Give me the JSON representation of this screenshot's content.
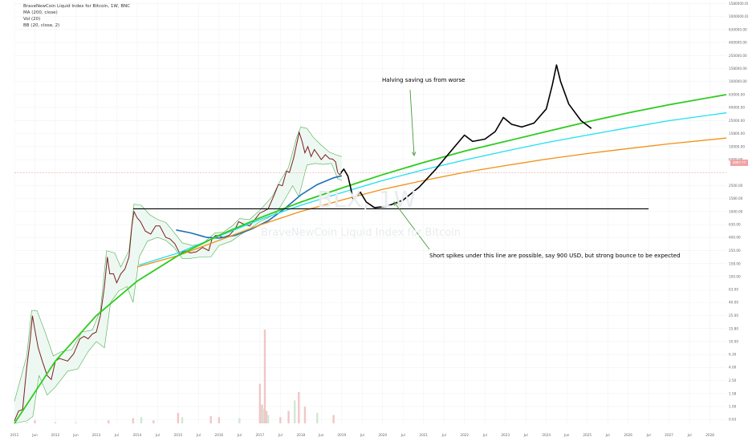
{
  "legend": {
    "title": "BraveNewCoin Liquid Index for Bitcoin, 1W, BNC",
    "ma": "MA (200, close)",
    "vol": "Vol (20)",
    "bb": "BB (20, close, 2)"
  },
  "watermark": {
    "symbol": "BLX, 1W",
    "name": "BraveNewCoin Liquid Index for Bitcoin"
  },
  "annotations": {
    "halving": "Halving saving us from worse",
    "spikes": "Short spikes under this line are possible, say 900 USD, but strong bounce to be expected"
  },
  "price_badge": "3957.77",
  "colors": {
    "candle": "#7a2020",
    "bollinger_band": "#4caf50",
    "bollinger_fill": "#eef8f2",
    "ma200": "#1e6fb5",
    "curve_green": "#2ecc1e",
    "curve_cyan": "#1ee0f0",
    "curve_orange": "#f09010",
    "projection": "#000000",
    "arrow": "#4a9a3a",
    "support_line": "#000000",
    "volume_up": "#cfe8d6",
    "volume_down": "#f3c6c6",
    "price_line": "#f2a3a3"
  },
  "chart_data": {
    "type": "line",
    "title": "BraveNewCoin Liquid Index for Bitcoin, 1W, BNC",
    "yscale": "log",
    "x_range": [
      2011.0,
      2028.4
    ],
    "y_range": [
      0.55,
      1700000
    ],
    "y_ticks": [
      {
        "value": 0.63,
        "label": "0.63"
      },
      {
        "value": 1,
        "label": "1.00"
      },
      {
        "value": 1.58,
        "label": "1.58"
      },
      {
        "value": 2.5,
        "label": "2.50"
      },
      {
        "value": 4,
        "label": "4.00"
      },
      {
        "value": 6.3,
        "label": "6.30"
      },
      {
        "value": 10,
        "label": "10.00"
      },
      {
        "value": 15.8,
        "label": "15.80"
      },
      {
        "value": 25,
        "label": "25.00"
      },
      {
        "value": 40,
        "label": "40.00"
      },
      {
        "value": 63,
        "label": "63.00"
      },
      {
        "value": 100,
        "label": "100.00"
      },
      {
        "value": 158,
        "label": "158.00"
      },
      {
        "value": 250,
        "label": "250.00"
      },
      {
        "value": 400,
        "label": "400.00"
      },
      {
        "value": 630,
        "label": "630.00"
      },
      {
        "value": 1000,
        "label": "1000.00"
      },
      {
        "value": 1580,
        "label": "1580.00"
      },
      {
        "value": 2500,
        "label": "2500.00"
      },
      {
        "value": 6300,
        "label": "6300.00"
      },
      {
        "value": 10000,
        "label": "10000.00"
      },
      {
        "value": 15800,
        "label": "15800.00"
      },
      {
        "value": 25000,
        "label": "25000.00"
      },
      {
        "value": 40000,
        "label": "40000.00"
      },
      {
        "value": 63000,
        "label": "63000.00"
      },
      {
        "value": 100000,
        "label": "100000.00"
      },
      {
        "value": 158000,
        "label": "158000.00"
      },
      {
        "value": 250000,
        "label": "250000.00"
      },
      {
        "value": 400000,
        "label": "400000.00"
      },
      {
        "value": 630000,
        "label": "630000.00"
      },
      {
        "value": 1000000,
        "label": "1000000.00"
      },
      {
        "value": 1580000,
        "label": "1580000.00"
      }
    ],
    "x_ticks": [
      {
        "t": 2011.0,
        "label": "2011"
      },
      {
        "t": 2011.5,
        "label": "Jun"
      },
      {
        "t": 2012.0,
        "label": "2012"
      },
      {
        "t": 2012.5,
        "label": "Jun"
      },
      {
        "t": 2013.0,
        "label": "2013"
      },
      {
        "t": 2013.5,
        "label": "Jul"
      },
      {
        "t": 2014.0,
        "label": "2014"
      },
      {
        "t": 2014.5,
        "label": "Jul"
      },
      {
        "t": 2015.0,
        "label": "2015"
      },
      {
        "t": 2015.5,
        "label": "Jul"
      },
      {
        "t": 2016.0,
        "label": "2016"
      },
      {
        "t": 2016.5,
        "label": "Jul"
      },
      {
        "t": 2017.0,
        "label": "2017"
      },
      {
        "t": 2017.5,
        "label": "Jul"
      },
      {
        "t": 2018.0,
        "label": "2018"
      },
      {
        "t": 2018.5,
        "label": "Jun"
      },
      {
        "t": 2019.0,
        "label": "2019"
      },
      {
        "t": 2019.5,
        "label": "Jul"
      },
      {
        "t": 2020.0,
        "label": "2020"
      },
      {
        "t": 2020.5,
        "label": "Jul"
      },
      {
        "t": 2021.0,
        "label": "2021"
      },
      {
        "t": 2021.5,
        "label": "Jul"
      },
      {
        "t": 2022.0,
        "label": "2022"
      },
      {
        "t": 2022.5,
        "label": "Jul"
      },
      {
        "t": 2023.0,
        "label": "2023"
      },
      {
        "t": 2023.5,
        "label": "Jul"
      },
      {
        "t": 2024.0,
        "label": "2024"
      },
      {
        "t": 2024.5,
        "label": "Jun"
      },
      {
        "t": 2025.0,
        "label": "2025"
      },
      {
        "t": 2025.5,
        "label": "Jul"
      },
      {
        "t": 2026.0,
        "label": "2026"
      },
      {
        "t": 2026.5,
        "label": "Jul"
      },
      {
        "t": 2027.0,
        "label": "2027"
      },
      {
        "t": 2027.5,
        "label": "Jul"
      },
      {
        "t": 2028.0,
        "label": "2028"
      }
    ],
    "price": [
      [
        2011.0,
        0.6
      ],
      [
        2011.1,
        0.85
      ],
      [
        2011.2,
        0.9
      ],
      [
        2011.3,
        4
      ],
      [
        2011.38,
        10
      ],
      [
        2011.44,
        25
      ],
      [
        2011.5,
        15
      ],
      [
        2011.58,
        8
      ],
      [
        2011.68,
        5
      ],
      [
        2011.8,
        3
      ],
      [
        2011.9,
        2.6
      ],
      [
        2012.0,
        5
      ],
      [
        2012.1,
        5.5
      ],
      [
        2012.3,
        5
      ],
      [
        2012.45,
        6.5
      ],
      [
        2012.6,
        11
      ],
      [
        2012.7,
        12
      ],
      [
        2012.8,
        11
      ],
      [
        2012.9,
        13
      ],
      [
        2013.0,
        14
      ],
      [
        2013.1,
        25
      ],
      [
        2013.2,
        70
      ],
      [
        2013.27,
        200
      ],
      [
        2013.33,
        110
      ],
      [
        2013.42,
        110
      ],
      [
        2013.5,
        80
      ],
      [
        2013.6,
        110
      ],
      [
        2013.7,
        130
      ],
      [
        2013.8,
        200
      ],
      [
        2013.87,
        600
      ],
      [
        2013.92,
        1000
      ],
      [
        2014.0,
        800
      ],
      [
        2014.08,
        700
      ],
      [
        2014.2,
        500
      ],
      [
        2014.33,
        450
      ],
      [
        2014.45,
        600
      ],
      [
        2014.55,
        600
      ],
      [
        2014.7,
        400
      ],
      [
        2014.8,
        380
      ],
      [
        2014.92,
        320
      ],
      [
        2015.05,
        220
      ],
      [
        2015.15,
        250
      ],
      [
        2015.3,
        230
      ],
      [
        2015.45,
        240
      ],
      [
        2015.6,
        280
      ],
      [
        2015.75,
        250
      ],
      [
        2015.83,
        380
      ],
      [
        2015.92,
        430
      ],
      [
        2016.0,
        420
      ],
      [
        2016.1,
        400
      ],
      [
        2016.25,
        430
      ],
      [
        2016.4,
        550
      ],
      [
        2016.48,
        700
      ],
      [
        2016.58,
        650
      ],
      [
        2016.75,
        600
      ],
      [
        2016.85,
        720
      ],
      [
        2017.0,
        950
      ],
      [
        2017.08,
        1000
      ],
      [
        2017.2,
        1100
      ],
      [
        2017.35,
        1800
      ],
      [
        2017.45,
        2600
      ],
      [
        2017.55,
        2500
      ],
      [
        2017.65,
        4200
      ],
      [
        2017.72,
        4000
      ],
      [
        2017.82,
        6500
      ],
      [
        2017.9,
        11000
      ],
      [
        2017.96,
        16500
      ],
      [
        2018.03,
        12000
      ],
      [
        2018.1,
        8000
      ],
      [
        2018.17,
        10000
      ],
      [
        2018.25,
        7000
      ],
      [
        2018.33,
        9000
      ],
      [
        2018.42,
        7500
      ],
      [
        2018.5,
        6300
      ],
      [
        2018.6,
        7500
      ],
      [
        2018.7,
        6500
      ],
      [
        2018.78,
        6400
      ],
      [
        2018.85,
        5800
      ],
      [
        2018.9,
        4000
      ],
      [
        2018.95,
        3700
      ],
      [
        2019.0,
        3950
      ]
    ],
    "bollinger_upper": [
      [
        2011.0,
        1.2
      ],
      [
        2011.3,
        6
      ],
      [
        2011.42,
        30
      ],
      [
        2011.55,
        30
      ],
      [
        2011.75,
        14
      ],
      [
        2011.95,
        6
      ],
      [
        2012.15,
        7
      ],
      [
        2012.4,
        7.5
      ],
      [
        2012.65,
        14
      ],
      [
        2012.9,
        15
      ],
      [
        2013.1,
        30
      ],
      [
        2013.25,
        250
      ],
      [
        2013.45,
        230
      ],
      [
        2013.6,
        140
      ],
      [
        2013.8,
        250
      ],
      [
        2013.92,
        1300
      ],
      [
        2014.1,
        1250
      ],
      [
        2014.3,
        900
      ],
      [
        2014.5,
        750
      ],
      [
        2014.7,
        680
      ],
      [
        2014.9,
        480
      ],
      [
        2015.1,
        330
      ],
      [
        2015.35,
        300
      ],
      [
        2015.6,
        320
      ],
      [
        2015.9,
        470
      ],
      [
        2016.1,
        480
      ],
      [
        2016.35,
        620
      ],
      [
        2016.5,
        780
      ],
      [
        2016.75,
        750
      ],
      [
        2017.0,
        1050
      ],
      [
        2017.3,
        1700
      ],
      [
        2017.5,
        3000
      ],
      [
        2017.7,
        4800
      ],
      [
        2017.9,
        14000
      ],
      [
        2018.0,
        20000
      ],
      [
        2018.15,
        19000
      ],
      [
        2018.3,
        14000
      ],
      [
        2018.5,
        10500
      ],
      [
        2018.7,
        8200
      ],
      [
        2018.85,
        7500
      ],
      [
        2019.0,
        7000
      ]
    ],
    "bollinger_lower": [
      [
        2011.0,
        0.55
      ],
      [
        2011.3,
        0.6
      ],
      [
        2011.45,
        0.7
      ],
      [
        2011.6,
        3
      ],
      [
        2011.8,
        1.5
      ],
      [
        2012.0,
        2
      ],
      [
        2012.3,
        3.5
      ],
      [
        2012.55,
        3.8
      ],
      [
        2012.8,
        7
      ],
      [
        2013.0,
        10
      ],
      [
        2013.2,
        8
      ],
      [
        2013.35,
        40
      ],
      [
        2013.55,
        60
      ],
      [
        2013.75,
        70
      ],
      [
        2013.9,
        40
      ],
      [
        2014.05,
        200
      ],
      [
        2014.25,
        350
      ],
      [
        2014.5,
        400
      ],
      [
        2014.7,
        360
      ],
      [
        2014.9,
        280
      ],
      [
        2015.1,
        190
      ],
      [
        2015.3,
        190
      ],
      [
        2015.55,
        200
      ],
      [
        2015.8,
        200
      ],
      [
        2016.0,
        300
      ],
      [
        2016.3,
        350
      ],
      [
        2016.55,
        450
      ],
      [
        2016.75,
        540
      ],
      [
        2017.0,
        700
      ],
      [
        2017.2,
        800
      ],
      [
        2017.4,
        950
      ],
      [
        2017.6,
        1500
      ],
      [
        2017.8,
        2500
      ],
      [
        2017.95,
        1700
      ],
      [
        2018.15,
        5200
      ],
      [
        2018.35,
        5500
      ],
      [
        2018.55,
        5300
      ],
      [
        2018.75,
        5500
      ],
      [
        2018.9,
        3200
      ],
      [
        2019.0,
        3000
      ]
    ],
    "ma200": [
      [
        2014.95,
        520
      ],
      [
        2015.3,
        470
      ],
      [
        2015.7,
        400
      ],
      [
        2016.0,
        390
      ],
      [
        2016.4,
        430
      ],
      [
        2016.8,
        540
      ],
      [
        2017.2,
        720
      ],
      [
        2017.6,
        1100
      ],
      [
        2018.0,
        1800
      ],
      [
        2018.4,
        2600
      ],
      [
        2018.8,
        3300
      ],
      [
        2019.0,
        3550
      ]
    ],
    "volume": [
      [
        2011.3,
        1
      ],
      [
        2011.5,
        3
      ],
      [
        2012.0,
        1
      ],
      [
        2012.5,
        1
      ],
      [
        2013.3,
        3
      ],
      [
        2013.9,
        5
      ],
      [
        2014.1,
        6
      ],
      [
        2014.4,
        3
      ],
      [
        2015.0,
        10
      ],
      [
        2015.1,
        6
      ],
      [
        2015.8,
        7
      ],
      [
        2016.0,
        6
      ],
      [
        2016.5,
        5
      ],
      [
        2017.0,
        38
      ],
      [
        2017.05,
        18
      ],
      [
        2017.08,
        14
      ],
      [
        2017.12,
        90
      ],
      [
        2017.16,
        12
      ],
      [
        2017.2,
        8
      ],
      [
        2017.5,
        6
      ],
      [
        2017.7,
        12
      ],
      [
        2017.85,
        22
      ],
      [
        2017.95,
        30
      ],
      [
        2018.1,
        16
      ],
      [
        2018.4,
        10
      ],
      [
        2018.8,
        8
      ]
    ],
    "curves": {
      "green": [
        [
          2011.0,
          0.55
        ],
        [
          2012.0,
          5
        ],
        [
          2013.0,
          25
        ],
        [
          2014.0,
          85
        ],
        [
          2015.0,
          210
        ],
        [
          2016.0,
          430
        ],
        [
          2017.0,
          800
        ],
        [
          2018.0,
          1400
        ],
        [
          2019.0,
          2300
        ],
        [
          2020.0,
          3700
        ],
        [
          2021.0,
          5700
        ],
        [
          2022.0,
          8500
        ],
        [
          2023.0,
          12000
        ],
        [
          2024.0,
          17000
        ],
        [
          2025.0,
          24000
        ],
        [
          2026.0,
          33000
        ],
        [
          2027.0,
          44000
        ],
        [
          2028.4,
          63000
        ]
      ],
      "cyan": [
        [
          2014.05,
          150
        ],
        [
          2015.0,
          230
        ],
        [
          2016.0,
          420
        ],
        [
          2017.0,
          750
        ],
        [
          2018.0,
          1250
        ],
        [
          2019.0,
          1950
        ],
        [
          2020.0,
          3000
        ],
        [
          2021.0,
          4400
        ],
        [
          2022.0,
          6200
        ],
        [
          2023.0,
          8500
        ],
        [
          2024.0,
          11500
        ],
        [
          2025.0,
          15000
        ],
        [
          2026.0,
          19500
        ],
        [
          2027.0,
          25000
        ],
        [
          2028.4,
          33000
        ]
      ],
      "orange": [
        [
          2014.0,
          140
        ],
        [
          2015.0,
          210
        ],
        [
          2016.0,
          360
        ],
        [
          2017.0,
          620
        ],
        [
          2018.0,
          1000
        ],
        [
          2019.0,
          1500
        ],
        [
          2020.0,
          2200
        ],
        [
          2021.0,
          3000
        ],
        [
          2022.0,
          4000
        ],
        [
          2023.0,
          5100
        ],
        [
          2024.0,
          6400
        ],
        [
          2025.0,
          7800
        ],
        [
          2026.0,
          9300
        ],
        [
          2027.0,
          11000
        ],
        [
          2028.4,
          13500
        ]
      ]
    },
    "projection": [
      [
        2018.98,
        3950
      ],
      [
        2019.05,
        4500
      ],
      [
        2019.15,
        3500
      ],
      [
        2019.22,
        2300
      ],
      [
        2019.28,
        1500
      ],
      [
        2019.35,
        1700
      ],
      [
        2019.45,
        2000
      ],
      [
        2019.6,
        1400
      ],
      [
        2019.8,
        1150
      ],
      [
        2020.1,
        1200
      ],
      [
        2020.5,
        1500
      ],
      [
        2020.9,
        2400
      ],
      [
        2021.3,
        4500
      ],
      [
        2021.7,
        9000
      ],
      [
        2022.0,
        15000
      ],
      [
        2022.2,
        12000
      ],
      [
        2022.5,
        13000
      ],
      [
        2022.75,
        17000
      ],
      [
        2022.95,
        28000
      ],
      [
        2023.15,
        22000
      ],
      [
        2023.4,
        20000
      ],
      [
        2023.7,
        23000
      ],
      [
        2024.0,
        38000
      ],
      [
        2024.15,
        90000
      ],
      [
        2024.25,
        180000
      ],
      [
        2024.35,
        100000
      ],
      [
        2024.55,
        45000
      ],
      [
        2024.85,
        25000
      ],
      [
        2025.1,
        19000
      ]
    ],
    "support_line": {
      "value": 1100,
      "x_start": 2013.9,
      "x_end": 2026.5
    },
    "last_price": 3957.77
  }
}
